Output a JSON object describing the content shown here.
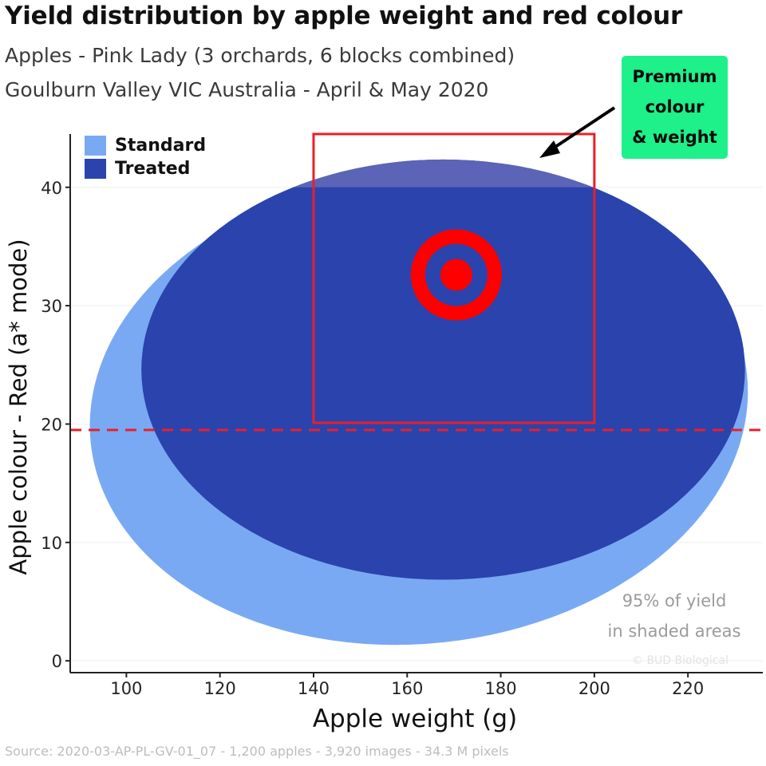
{
  "header": {
    "title": "Yield distribution by apple weight and red colour",
    "subtitle_line1": "Apples - Pink Lady (3 orchards, 6 blocks combined)",
    "subtitle_line2": "Goulburn Valley VIC Australia - April & May 2020"
  },
  "callout": {
    "line1": "Premium",
    "line2": "colour",
    "line3": "& weight"
  },
  "note": {
    "line1": "95% of yield",
    "line2": "in shaded areas"
  },
  "copyright": "© BUD Biological",
  "footer": "Source: 2020-03-AP-PL-GV-01_07 - 1,200 apples - 3,920 images - 34.3 M pixels",
  "colors": {
    "standard": "#7aa9f4",
    "treated": "#2a43ad",
    "treated_cap": "#5b64b6",
    "premium_box": "#e8202a",
    "target": "#ff0000",
    "threshold_line": "#e8202a",
    "callout_bg": "#1ef08a"
  },
  "chart_data": {
    "type": "scatter",
    "xlabel": "Apple weight (g)",
    "ylabel": "Apple colour - Red (a* mode)",
    "xlim": [
      88,
      236
    ],
    "ylim": [
      -1,
      44.5
    ],
    "xticks": [
      100,
      120,
      140,
      160,
      180,
      200,
      220
    ],
    "yticks": [
      0,
      10,
      20,
      30,
      40
    ],
    "grid": "horizontal",
    "legend": {
      "position": "top-left",
      "entries": [
        "Standard",
        "Treated"
      ]
    },
    "series": [
      {
        "name": "Standard",
        "region": "95% ellipse",
        "center": [
          162.5,
          21.3
        ],
        "x_extent": [
          92,
          233
        ],
        "y_extent": [
          1.1,
          40.8
        ]
      },
      {
        "name": "Treated",
        "region": "95% ellipse",
        "center": [
          167.7,
          24.6
        ],
        "x_extent": [
          103,
          232
        ],
        "y_extent": [
          6.9,
          42.4
        ]
      }
    ],
    "premium_box": {
      "x": [
        140,
        200
      ],
      "y": [
        20.1,
        44.5
      ]
    },
    "target": {
      "x": 170.5,
      "y": 32.6
    },
    "threshold_y": 19.5
  }
}
